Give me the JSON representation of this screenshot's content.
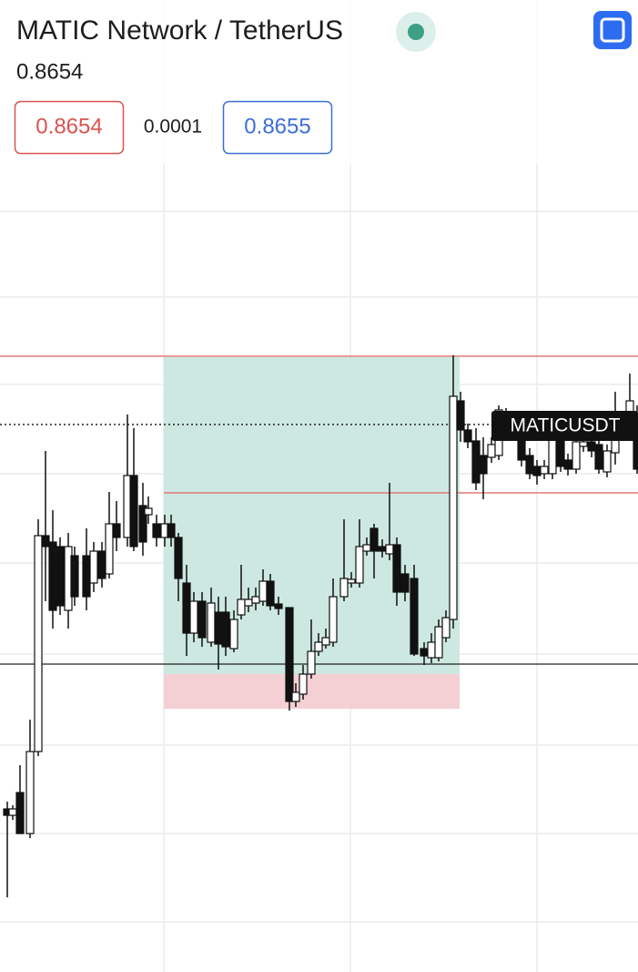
{
  "header": {
    "title": "MATIC Network / TetherUS",
    "price": "0.8654"
  },
  "quote": {
    "bid": "0.8654",
    "spread": "0.0001",
    "ask": "0.8655"
  },
  "chart": {
    "symbol_label": "MATICUSDT"
  }
}
